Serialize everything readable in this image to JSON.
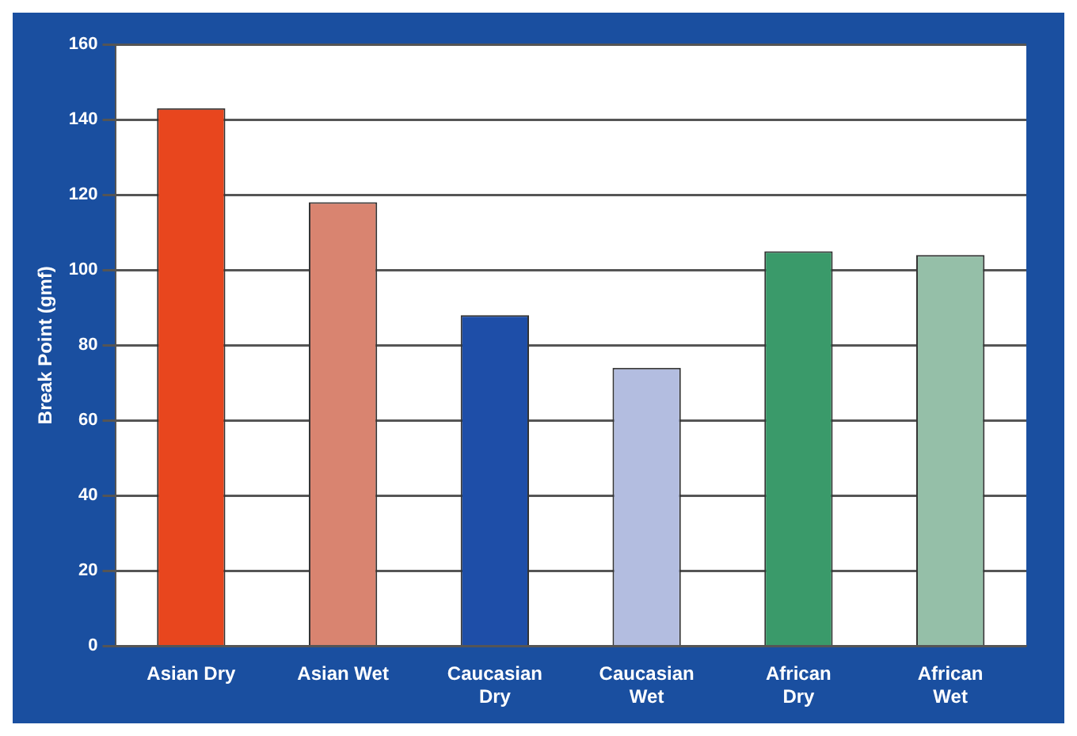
{
  "chart_data": {
    "type": "bar",
    "ylabel": "Break Point (gmf)",
    "categories": [
      "Asian Dry",
      "Asian Wet",
      "Caucasian Dry",
      "Caucasian Wet",
      "African Dry",
      "African Wet"
    ],
    "values": [
      143,
      118,
      88,
      74,
      105,
      104
    ],
    "colors": [
      "#e8461e",
      "#d98470",
      "#1e4ea8",
      "#b3bde0",
      "#3a9a6a",
      "#95bfa8"
    ],
    "ylim": [
      0,
      160
    ],
    "yticks": [
      0,
      20,
      40,
      60,
      80,
      100,
      120,
      140,
      160
    ],
    "grid": "y",
    "legend": false
  }
}
